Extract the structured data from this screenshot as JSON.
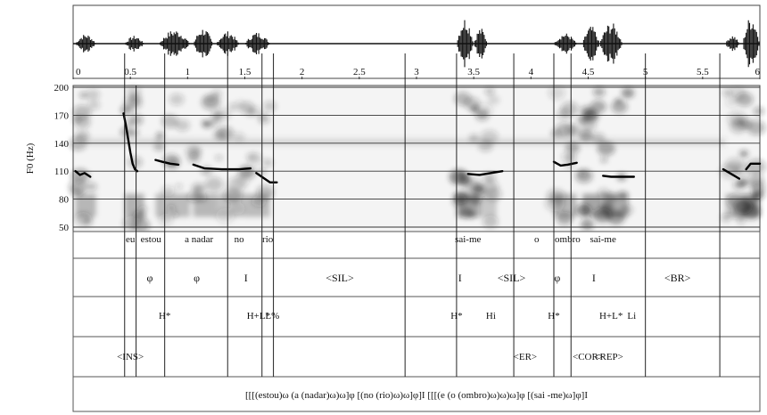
{
  "time_axis": {
    "ticks": [
      "0",
      "0.5",
      "1",
      "1.5",
      "2",
      "2.5",
      "3",
      "3.5",
      "4",
      "4.5",
      "5",
      "5.5",
      "6"
    ],
    "tick_values": [
      0,
      0.5,
      1,
      1.5,
      2,
      2.5,
      3,
      3.5,
      4,
      4.5,
      5,
      5.5,
      6
    ],
    "range": [
      0,
      6
    ]
  },
  "f0_axis": {
    "label": "F0 (Hz)",
    "ticks": [
      "200",
      "170",
      "140",
      "110",
      "80",
      "50"
    ],
    "tick_values": [
      200,
      170,
      140,
      110,
      80,
      50
    ],
    "range": [
      50,
      200
    ]
  },
  "boundaries": [
    0.45,
    0.55,
    0.8,
    1.35,
    1.65,
    1.75,
    2.9,
    3.35,
    3.85,
    4.2,
    4.35,
    5.0,
    5.65
  ],
  "tiers": {
    "words": [
      "eu",
      "estou",
      "a nadar",
      "no",
      "rio",
      "sai-me",
      "o",
      "ombro",
      "sai-me"
    ],
    "phrasing": [
      "φ",
      "φ",
      "I",
      "<SIL>",
      "I",
      "<SIL>",
      "φ",
      "I",
      "<BR>"
    ],
    "tones": [
      "H*",
      "H+L*",
      "L%",
      "H*",
      "Hi",
      "H*",
      "H+L*",
      "Li"
    ],
    "events": [
      "<INS>",
      "<ER>",
      "<COR>",
      "<REP>"
    ],
    "bracketing": "[[[(estou)ω (a (nadar)ω)ω]φ [(no (rio)ω)ω]φ]I [[[(e (o (ombro)ω)ω)ω]φ [(sai -me)ω]φ]I"
  },
  "chart_data": {
    "type": "line",
    "xlabel": "",
    "ylabel": "F0 (Hz)",
    "xlim": [
      0,
      6
    ],
    "ylim": [
      50,
      200
    ],
    "grid": true,
    "series": [
      {
        "x": [
          0.02,
          0.06,
          0.1,
          0.15
        ],
        "y": [
          110,
          106,
          108,
          104
        ]
      },
      {
        "x": [
          0.44,
          0.46,
          0.48,
          0.5,
          0.52,
          0.54,
          0.56
        ],
        "y": [
          172,
          160,
          145,
          130,
          118,
          112,
          110
        ]
      },
      {
        "x": [
          0.72,
          0.78,
          0.85,
          0.92
        ],
        "y": [
          122,
          120,
          118,
          117
        ]
      },
      {
        "x": [
          1.05,
          1.15,
          1.3,
          1.45,
          1.55
        ],
        "y": [
          117,
          113,
          112,
          112,
          113
        ]
      },
      {
        "x": [
          1.6,
          1.66,
          1.72,
          1.78
        ],
        "y": [
          108,
          103,
          98,
          98
        ]
      },
      {
        "x": [
          3.45,
          3.55,
          3.65,
          3.75
        ],
        "y": [
          107,
          106,
          108,
          110
        ]
      },
      {
        "x": [
          4.2,
          4.26,
          4.32,
          4.4
        ],
        "y": [
          120,
          116,
          117,
          119
        ]
      },
      {
        "x": [
          4.63,
          4.7,
          4.8,
          4.9
        ],
        "y": [
          105,
          104,
          104,
          104
        ]
      },
      {
        "x": [
          5.68,
          5.75,
          5.82
        ],
        "y": [
          112,
          107,
          102
        ]
      },
      {
        "x": [
          5.88,
          5.92,
          5.96,
          6.0
        ],
        "y": [
          112,
          118,
          118,
          118
        ]
      }
    ]
  }
}
